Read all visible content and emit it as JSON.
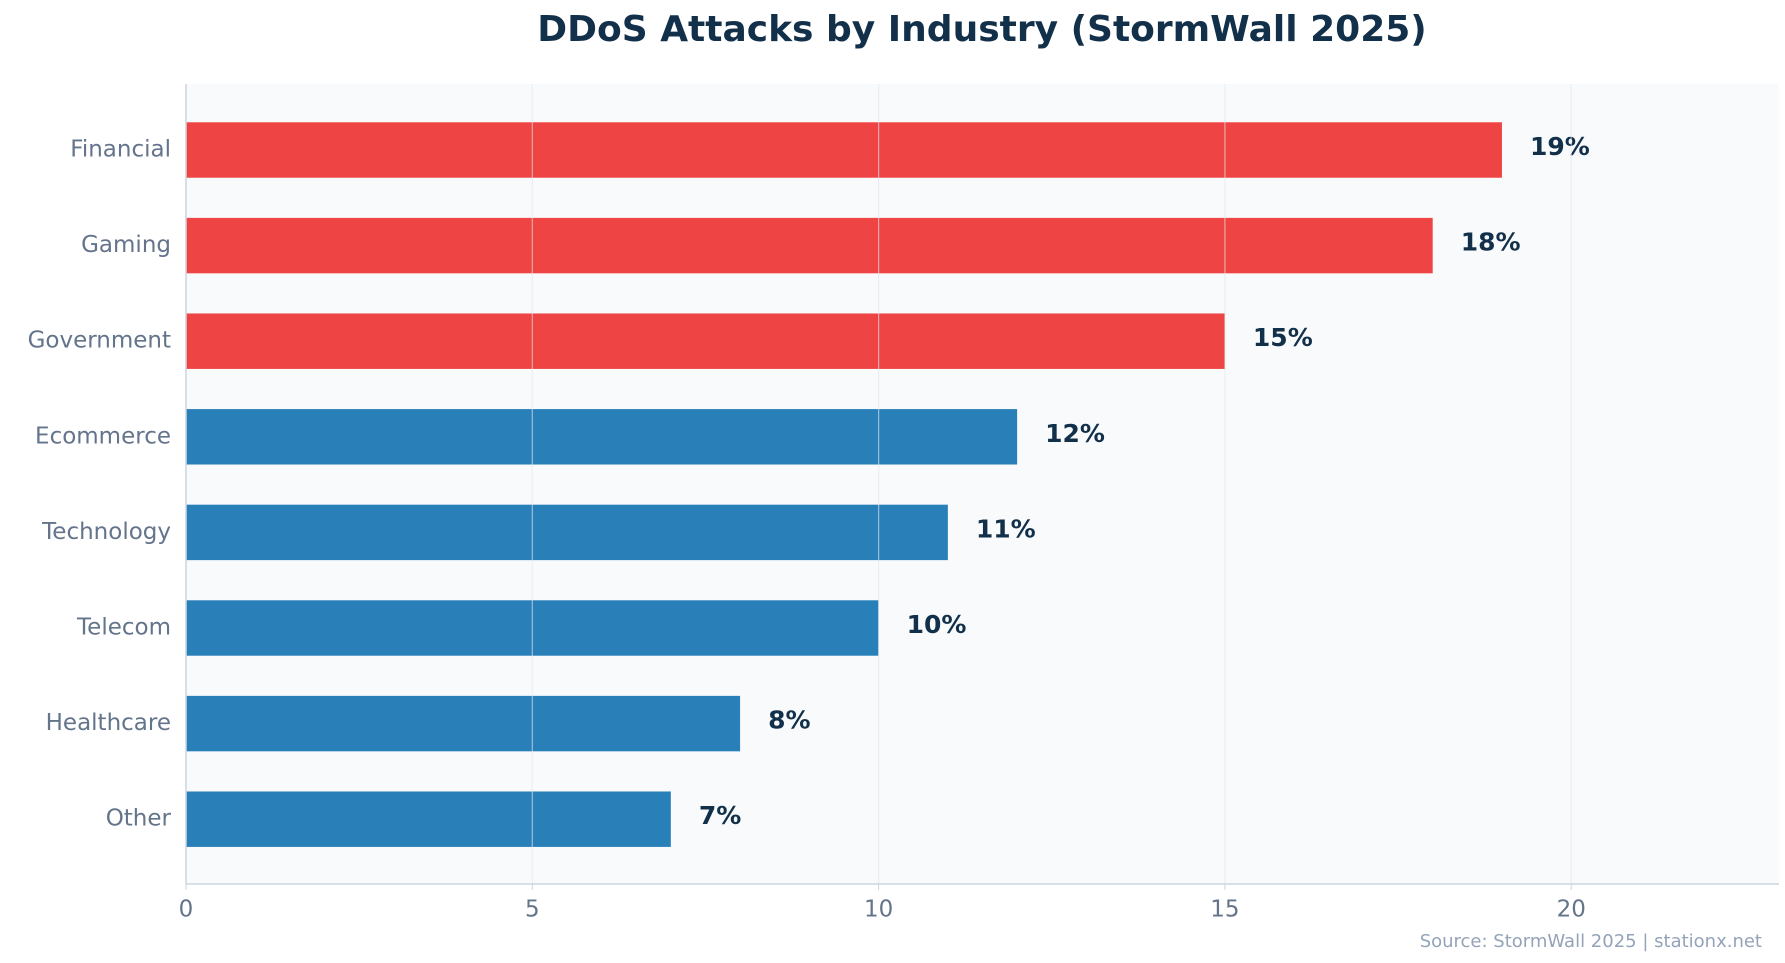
{
  "chart_data": {
    "type": "hbar",
    "title": "DDoS Attacks by Industry (StormWall 2025)",
    "categories": [
      "Financial",
      "Gaming",
      "Government",
      "Ecommerce",
      "Technology",
      "Telecom",
      "Healthcare",
      "Other"
    ],
    "values": [
      19,
      18,
      15,
      12,
      11,
      10,
      8,
      7
    ],
    "value_labels": [
      "19%",
      "18%",
      "15%",
      "12%",
      "11%",
      "10%",
      "8%",
      "7%"
    ],
    "colors": [
      "#ef4444",
      "#ef4444",
      "#ef4444",
      "#2980b9",
      "#2980b9",
      "#2980b9",
      "#2980b9",
      "#2980b9"
    ],
    "xlim": [
      0,
      23
    ],
    "xticks": [
      0,
      5,
      10,
      15,
      20
    ],
    "grid": true,
    "source": "Source: StormWall 2025 | stationx.net"
  }
}
